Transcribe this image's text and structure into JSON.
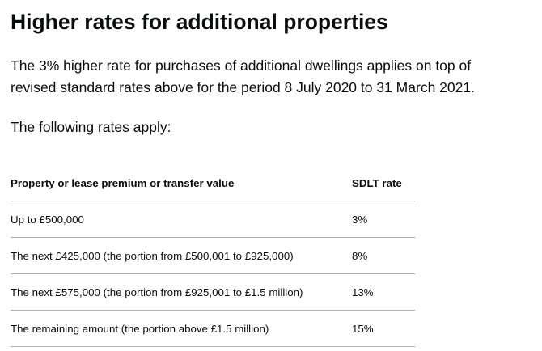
{
  "section": {
    "heading": "Higher rates for additional properties",
    "intro_line_1": "The 3% higher rate for purchases of additional dwellings applies on top of",
    "intro_line_2": "revised standard rates above for the period 8 July 2020 to 31 March 2021.",
    "following": "The following rates apply:"
  },
  "table": {
    "headers": [
      "Property or lease premium or transfer value",
      "SDLT rate"
    ],
    "rows": [
      {
        "band": "Up to £500,000",
        "rate": "3%"
      },
      {
        "band": "The next £425,000 (the portion from £500,001 to £925,000)",
        "rate": "8%"
      },
      {
        "band": "The next £575,000 (the portion from £925,001 to £1.5 million)",
        "rate": "13%"
      },
      {
        "band": "The remaining amount (the portion above £1.5 million)",
        "rate": "15%"
      }
    ]
  },
  "colors": {
    "text": "#0b0c0c",
    "border": "#b1b4b6",
    "background": "#ffffff"
  }
}
